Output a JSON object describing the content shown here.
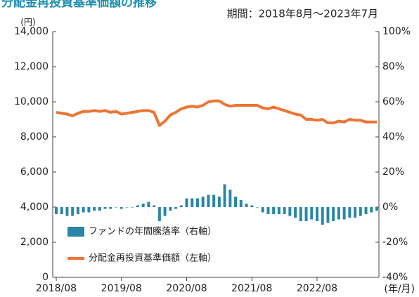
{
  "chart_data": {
    "type": "bar",
    "title": "分配金再投資基準価額の推移",
    "subtitle": "期間：2018年8月〜2023年7月",
    "y_label": "(円)",
    "x_label": "(年/月)",
    "categories": [
      "2018/08",
      null,
      null,
      null,
      null,
      null,
      null,
      null,
      null,
      null,
      null,
      null,
      "2019/08",
      null,
      null,
      null,
      null,
      null,
      null,
      null,
      null,
      null,
      null,
      null,
      "2020/08",
      null,
      null,
      null,
      null,
      null,
      null,
      null,
      null,
      null,
      null,
      null,
      "2021/08",
      null,
      null,
      null,
      null,
      null,
      null,
      null,
      null,
      null,
      null,
      null,
      "2022/08",
      null,
      null,
      null,
      null,
      null,
      null,
      null,
      null,
      null,
      null,
      null
    ],
    "series": [
      {
        "name": "ファンドの年間騰落率（右軸）",
        "type": "bar",
        "axis": "y2",
        "color": "#2a86a6",
        "values": [
          -4,
          -4,
          -5,
          -5,
          -4,
          -3,
          -3,
          -2,
          -2,
          -1,
          -1,
          0,
          -1,
          0,
          0,
          1,
          2,
          3,
          1,
          -8,
          -5,
          -2,
          -1,
          1,
          5,
          5,
          5,
          6,
          7,
          7,
          6,
          13,
          10,
          6,
          4,
          2,
          1,
          0,
          -3,
          -4,
          -4,
          -4,
          -4,
          -5,
          -6,
          -8,
          -8,
          -7,
          -8,
          -10,
          -9,
          -8,
          -7,
          -7,
          -6,
          -6,
          -5,
          -4,
          -3,
          -2
        ]
      },
      {
        "name": "分配金再投資基準価額（左軸）",
        "type": "line",
        "color": "#ee7433",
        "values": [
          9400,
          9350,
          9300,
          9200,
          9350,
          9450,
          9450,
          9500,
          9450,
          9500,
          9400,
          9450,
          9300,
          9350,
          9400,
          9450,
          9500,
          9500,
          9400,
          8650,
          8900,
          9250,
          9400,
          9600,
          9700,
          9750,
          9700,
          9800,
          10000,
          10050,
          10050,
          9850,
          9750,
          9800,
          9800,
          9800,
          9800,
          9800,
          9650,
          9600,
          9700,
          9600,
          9500,
          9400,
          9300,
          9250,
          9000,
          9000,
          8950,
          9000,
          8800,
          8800,
          8900,
          8850,
          9000,
          8950,
          8950,
          8850,
          8850,
          8850
        ]
      }
    ],
    "ylim": [
      0,
      14000
    ],
    "yticks": [
      0,
      {
        "value": 2000,
        "label": "2,000"
      },
      {
        "value": 4000,
        "label": "4,000"
      },
      {
        "value": 6000,
        "label": "6,000"
      },
      {
        "value": 8000,
        "label": "8,000"
      },
      {
        "value": 10000,
        "label": "10,000"
      },
      {
        "value": 12000,
        "label": "12,000"
      },
      {
        "value": 14000,
        "label": "14,000"
      }
    ],
    "y2lim": [
      -40,
      100
    ],
    "y2ticks": [
      {
        "value": -40,
        "label": "-40%"
      },
      {
        "value": -20,
        "label": "-20%"
      },
      {
        "value": 0,
        "label": "0%"
      },
      {
        "value": 20,
        "label": "20%"
      },
      {
        "value": 40,
        "label": "40%"
      },
      {
        "value": 60,
        "label": "60%"
      },
      {
        "value": 80,
        "label": "80%"
      },
      {
        "value": 100,
        "label": "100%"
      }
    ]
  }
}
